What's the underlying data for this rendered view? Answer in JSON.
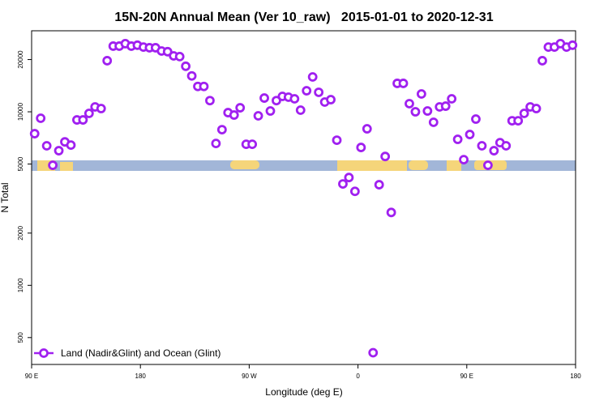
{
  "chart_data": {
    "type": "scatter",
    "title": "15N-20N Annual Mean (Ver 10_raw)   2015-01-01 to 2020-12-31",
    "x_label": "Longitude (deg E)",
    "y_label": "N Total",
    "log_y": true,
    "grid": false,
    "legend_position": "lower-left",
    "xlim": [
      90,
      540
    ],
    "xticks": [
      {
        "value": 90,
        "label": "90 E"
      },
      {
        "value": 180,
        "label": "180"
      },
      {
        "value": 270,
        "label": "90 W"
      },
      {
        "value": 360,
        "label": "0"
      },
      {
        "value": 450,
        "label": "90 E"
      },
      {
        "value": 540,
        "label": "180"
      }
    ],
    "ylim": [
      350,
      29300
    ],
    "yticks": [
      500,
      1000,
      2000,
      5000,
      10000,
      20000
    ],
    "series": [
      {
        "name": "Land (Nadir&Glint) and Ocean (Glint)",
        "color": "#a020f0",
        "x": [
          92.5,
          97.5,
          102.5,
          107.5,
          112.5,
          117.5,
          122.5,
          127.5,
          132.5,
          137.5,
          142.5,
          147.5,
          152.5,
          157.5,
          162.5,
          167.5,
          172.5,
          177.5,
          182.5,
          187.5,
          192.5,
          197.5,
          202.5,
          207.5,
          212.5,
          217.5,
          222.5,
          227.5,
          232.5,
          237.5,
          242.5,
          247.5,
          252.5,
          257.5,
          262.5,
          267.5,
          272.5,
          277.5,
          282.5,
          287.5,
          292.5,
          297.5,
          302.5,
          307.5,
          312.5,
          317.5,
          322.5,
          327.5,
          332.5,
          337.5,
          342.5,
          347.5,
          352.5,
          357.5,
          362.5,
          367.5,
          372.5,
          377.5,
          382.5,
          387.5,
          392.5,
          397.5,
          402.5,
          407.5,
          412.5,
          417.5,
          422.5,
          427.5,
          432.5,
          437.5,
          442.5,
          447.5,
          452.5,
          457.5,
          462.5,
          467.5,
          472.5,
          477.5,
          482.5,
          487.5,
          492.5,
          497.5,
          502.5,
          507.5,
          512.5,
          517.5,
          522.5,
          527.5,
          532.5,
          537.5
        ],
        "values": [
          7480,
          9180,
          6370,
          4920,
          5970,
          6710,
          6430,
          8980,
          8980,
          9790,
          10670,
          10440,
          19700,
          23900,
          23900,
          24700,
          23900,
          24200,
          23600,
          23400,
          23400,
          22400,
          22200,
          21000,
          20800,
          18300,
          16100,
          14000,
          14000,
          11600,
          6570,
          7890,
          9890,
          9580,
          10550,
          6500,
          6500,
          9480,
          12000,
          10110,
          11600,
          12270,
          12140,
          11880,
          10220,
          13220,
          15880,
          12950,
          11380,
          11750,
          6860,
          3840,
          4180,
          3480,
          6230,
          7980,
          409,
          3800,
          5530,
          2630,
          14580,
          14580,
          11140,
          10000,
          12670,
          10110,
          8700,
          10670,
          10780,
          11880,
          6940,
          5300,
          7400,
          9080,
          6370,
          4920,
          5970,
          6640,
          6370,
          8880,
          8880,
          9790,
          10670,
          10440,
          19700,
          23600,
          23600,
          24700,
          23600,
          24200
        ]
      }
    ]
  }
}
